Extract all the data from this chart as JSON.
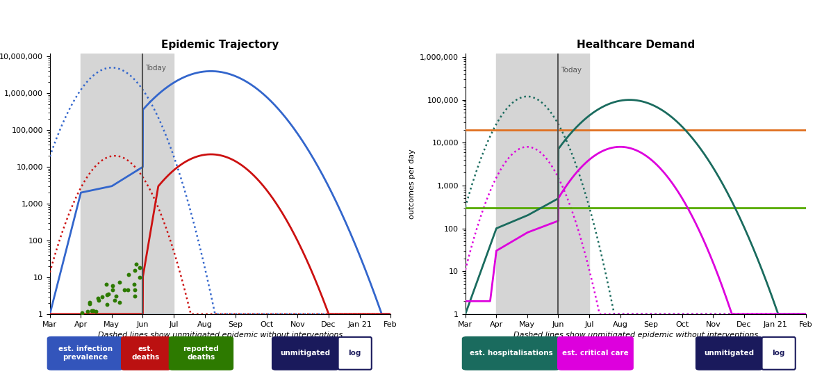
{
  "left_title": "Epidemic Trajectory",
  "right_title": "Healthcare Demand",
  "xlabel": "Dashed lines show unmitigated epidemic without interventions",
  "ylabel": "outcomes per day",
  "x_ticks": [
    "Mar",
    "Apr",
    "May",
    "Jun",
    "Jul",
    "Aug",
    "Sep",
    "Oct",
    "Nov",
    "Dec",
    "Jan 21",
    "Feb"
  ],
  "ylim_left": [
    1,
    10000000
  ],
  "ylim_right": [
    1,
    1000000
  ],
  "colors": {
    "blue": "#3366cc",
    "red": "#cc1111",
    "green": "#2d7a00",
    "teal": "#1a6b5e",
    "magenta": "#dd00dd",
    "orange": "#e07020",
    "lime": "#55aa00",
    "navy": "#1a1a5c",
    "gray_bg": "#d5d5d5",
    "today_line": "#555555",
    "baseline": "#6699cc"
  },
  "hosp_capacity": 20000,
  "cc_capacity": 300,
  "bottom_buttons_left": [
    {
      "label": "est. infection\nprevalence",
      "bg": "#3355bb",
      "fg": "white"
    },
    {
      "label": "est.\ndeaths",
      "bg": "#bb1111",
      "fg": "white"
    },
    {
      "label": "reported\ndeaths",
      "bg": "#2d7a00",
      "fg": "white"
    }
  ],
  "bottom_buttons_right": [
    {
      "label": "est. hospitalisations",
      "bg": "#1a6b5e",
      "fg": "white"
    },
    {
      "label": "est. critical care",
      "bg": "#dd00dd",
      "fg": "white"
    }
  ],
  "bottom_buttons_shared": [
    {
      "label": "unmitigated",
      "bg": "#1a1a5c",
      "fg": "white",
      "border": "#1a1a5c"
    },
    {
      "label": "log",
      "bg": "white",
      "fg": "#1a1a5c",
      "border": "#1a1a5c"
    }
  ]
}
